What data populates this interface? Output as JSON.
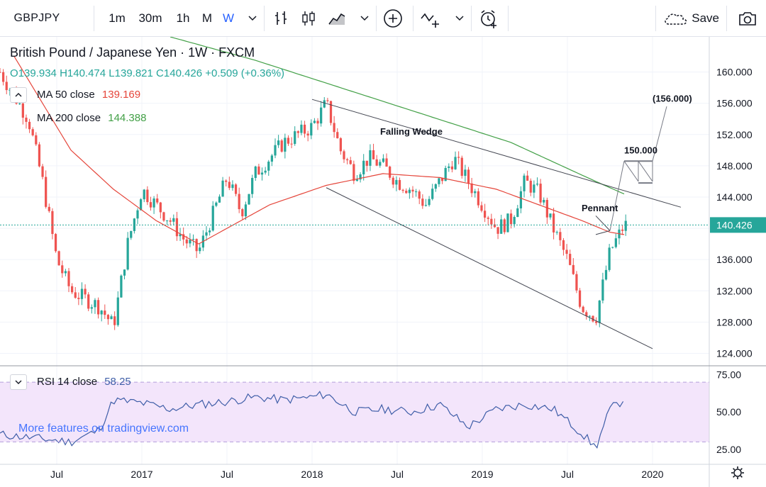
{
  "toolbar": {
    "symbol": "GBPJPY",
    "intervals": [
      "1m",
      "30m",
      "1h",
      "M",
      "W"
    ],
    "selected_interval": "W",
    "save_label": "Save"
  },
  "legend": {
    "title": "British Pound / Japanese Yen · 1W · FXCM",
    "open": "O139.934",
    "high": "H140.474",
    "low": "L139.821",
    "close": "C140.426",
    "change": "+0.509 (+0.36%)",
    "ma50_label": "MA 50 close",
    "ma50_value": "139.169",
    "ma200_label": "MA 200 close",
    "ma200_value": "144.388",
    "rsi_label": "RSI 14 close",
    "rsi_value": "58.25"
  },
  "annotations": {
    "falling_wedge": "Falling Wedge",
    "pennant": "Pennant",
    "target_150": "150.000",
    "target_156": "(156.000)"
  },
  "watermark": "More features on tradingview.com",
  "colors": {
    "up": "#26a69a",
    "down": "#ef5350",
    "ma50": "#e5463b",
    "ma200": "#43a047",
    "rsi": "#3f5ea8",
    "rsi_band": "#f3e5fb"
  },
  "chart_data": [
    {
      "type": "line",
      "title": "British Pound / Japanese Yen · 1W · FXCM",
      "price_axis": {
        "ticks": [
          "160.000",
          "156.000",
          "152.000",
          "148.000",
          "144.000",
          "140.000",
          "136.000",
          "132.000",
          "128.000",
          "124.000"
        ],
        "ylim": [
          122.5,
          164.5
        ]
      },
      "time_axis": {
        "ticks": [
          "Jul",
          "2017",
          "Jul",
          "2018",
          "Jul",
          "2019",
          "Jul",
          "2020"
        ],
        "xlim": [
          "2016-03",
          "2020-05"
        ]
      },
      "last_price": "140.426",
      "series": [
        {
          "name": "GBPJPY",
          "x": [
            "2016-03",
            "2016-05",
            "2016-06",
            "2016-07",
            "2016-08",
            "2016-10",
            "2016-11",
            "2016-12",
            "2017-01",
            "2017-03",
            "2017-04",
            "2017-05",
            "2017-07",
            "2017-08",
            "2017-09",
            "2017-11",
            "2018-01",
            "2018-02",
            "2018-03",
            "2018-04",
            "2018-05",
            "2018-06",
            "2018-07",
            "2018-08",
            "2018-09",
            "2018-10",
            "2018-11",
            "2018-12",
            "2019-01",
            "2019-02",
            "2019-03",
            "2019-04",
            "2019-05",
            "2019-06",
            "2019-07",
            "2019-08",
            "2019-09",
            "2019-10",
            "2019-11"
          ],
          "values": [
            160,
            154,
            146,
            136,
            132,
            130,
            127.5,
            138,
            145,
            141,
            138.5,
            137,
            146.5,
            142,
            147,
            151,
            153,
            156,
            150,
            147,
            149,
            148,
            146,
            145,
            143,
            146,
            149,
            146,
            143,
            140,
            141,
            146,
            144.5,
            140,
            136,
            130,
            128.5,
            137,
            140.4
          ]
        },
        {
          "name": "MA 50 close",
          "x": [
            "2016-04",
            "2016-08",
            "2016-11",
            "2017-02",
            "2017-05",
            "2017-07",
            "2017-10",
            "2018-02",
            "2018-06",
            "2018-10",
            "2019-02",
            "2019-05",
            "2019-08",
            "2019-10",
            "2019-11"
          ],
          "values": [
            162,
            150,
            145,
            141,
            138,
            140,
            143,
            145.5,
            147,
            146.5,
            145,
            143,
            141,
            139.5,
            139.2
          ]
        },
        {
          "name": "MA 200 close",
          "x": [
            "2017-03",
            "2017-09",
            "2018-03",
            "2018-09",
            "2019-03",
            "2019-09",
            "2019-11"
          ],
          "values": [
            164.5,
            161.5,
            158,
            154.5,
            151,
            146,
            144.4
          ]
        }
      ],
      "annotations": [
        "Falling Wedge",
        "Pennant",
        "150.000",
        "(156.000)"
      ]
    },
    {
      "type": "line",
      "title": "RSI 14 close",
      "ylim": [
        15,
        80
      ],
      "ticks": [
        "75.00",
        "50.00",
        "25.00"
      ],
      "band": [
        30,
        70
      ],
      "series": [
        {
          "name": "RSI 14 close",
          "x": [
            "2016-03",
            "2016-06",
            "2016-08",
            "2016-10",
            "2016-11",
            "2017-01",
            "2017-03",
            "2017-05",
            "2017-07",
            "2017-09",
            "2017-11",
            "2018-01",
            "2018-02",
            "2018-04",
            "2018-06",
            "2018-08",
            "2018-10",
            "2018-12",
            "2019-02",
            "2019-04",
            "2019-06",
            "2019-08",
            "2019-09",
            "2019-10",
            "2019-11"
          ],
          "values": [
            35,
            32,
            30,
            38,
            58,
            56,
            52,
            55,
            57,
            60,
            58,
            60,
            62,
            50,
            52,
            50,
            55,
            40,
            52,
            55,
            52,
            36,
            26,
            52,
            58.25
          ]
        }
      ]
    }
  ]
}
